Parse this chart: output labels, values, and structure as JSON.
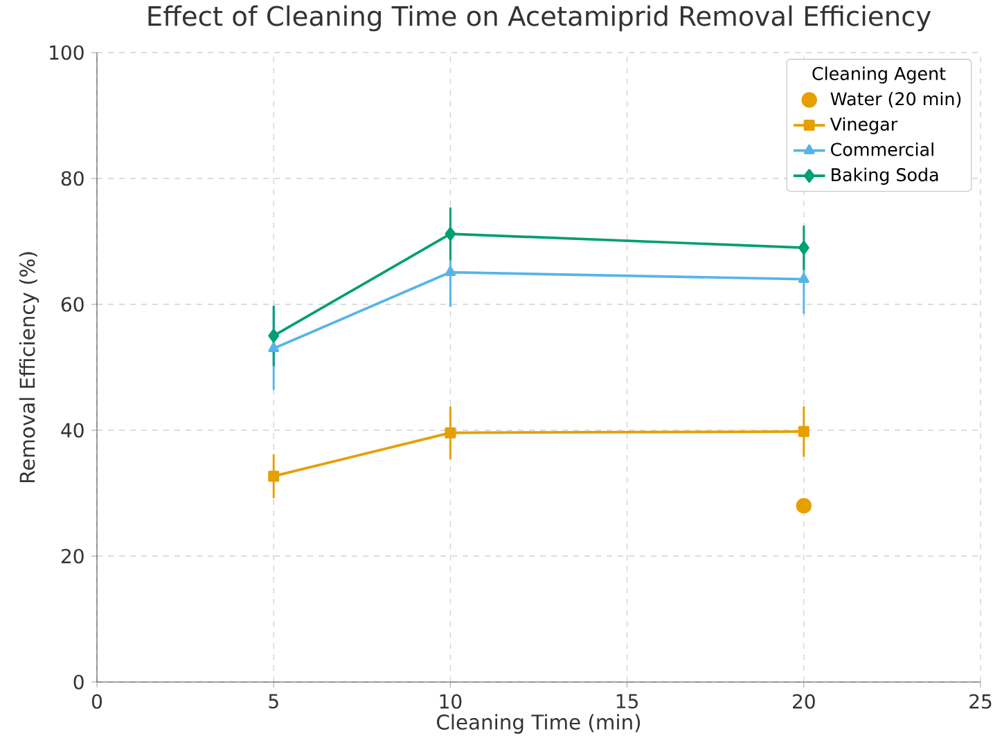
{
  "chart_data": {
    "type": "line",
    "title": "Effect of Cleaning Time on Acetamiprid Removal Efficiency",
    "xlabel": "Cleaning Time (min)",
    "ylabel": "Removal Efficiency (%)",
    "legend_title": "Cleaning Agent",
    "xlim": [
      0,
      25
    ],
    "ylim": [
      0,
      100
    ],
    "xticks": [
      0,
      5,
      10,
      15,
      20,
      25
    ],
    "yticks": [
      0,
      20,
      40,
      60,
      80,
      100
    ],
    "grid": true,
    "legend": "top right",
    "line_style": "solid",
    "series": [
      {
        "name": "Water (20 min)",
        "type": "scatter",
        "color": "#e69f00",
        "marker": "circle",
        "x": [
          20
        ],
        "values": [
          28
        ]
      },
      {
        "name": "Vinegar",
        "color": "#e69f00",
        "marker": "square",
        "x": [
          5,
          10,
          20
        ],
        "values": [
          32.7,
          39.6,
          39.8
        ],
        "errors": [
          3.5,
          4.2,
          4
        ]
      },
      {
        "name": "Commercial",
        "color": "#56b4e9",
        "marker": "triangle",
        "x": [
          5,
          10,
          20
        ],
        "values": [
          53,
          65.1,
          64
        ],
        "errors": [
          6.6,
          5.5,
          5.5
        ]
      },
      {
        "name": "Baking Soda",
        "color": "#009e73",
        "marker": "diamond",
        "x": [
          5,
          10,
          20
        ],
        "values": [
          55,
          71.2,
          69
        ],
        "errors": [
          4.8,
          4.2,
          3.5
        ]
      }
    ]
  }
}
